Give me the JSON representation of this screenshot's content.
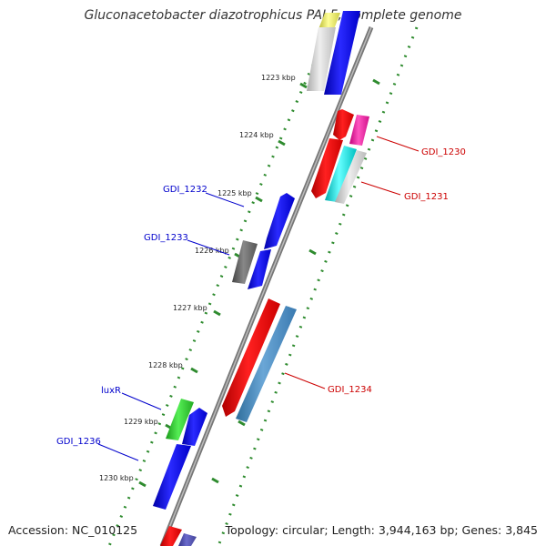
{
  "title": "Gluconacetobacter diazotrophicus PAI 5, complete genome",
  "footer": {
    "accession": "Accession: NC_010125",
    "summary": "Topology: circular; Length: 3,944,163 bp; Genes: 3,845"
  },
  "scale": {
    "ticks": [
      "1223 kbp",
      "1224 kbp",
      "1225 kbp",
      "1226 kbp",
      "1227 kbp",
      "1228 kbp",
      "1229 kbp",
      "1230 kbp"
    ]
  },
  "labels": {
    "gdi_1230": "GDI_1230",
    "gdi_1231": "GDI_1231",
    "gdi_1232": "GDI_1232",
    "gdi_1233": "GDI_1233",
    "gdi_1234": "GDI_1234",
    "luxr": "luxR",
    "gdi_1236": "GDI_1236"
  },
  "colors": {
    "forward_label": "#0000cc",
    "reverse_label": "#cc0000",
    "dotted_track": "#2e8b2e",
    "backbone": "#777777"
  }
}
